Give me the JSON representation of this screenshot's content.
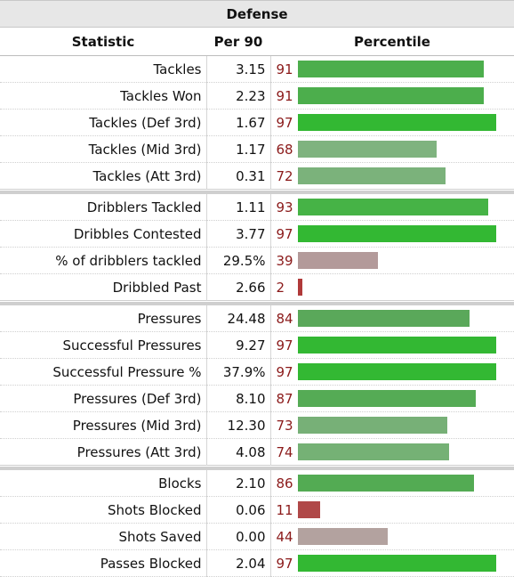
{
  "table": {
    "title": "Defense",
    "headers": [
      "Statistic",
      "Per 90",
      "Percentile"
    ],
    "groups": [
      [
        {
          "stat": "Tackles",
          "per90": "3.15",
          "pct": 91,
          "color": "#4cae4c"
        },
        {
          "stat": "Tackles Won",
          "per90": "2.23",
          "pct": 91,
          "color": "#4cae4c"
        },
        {
          "stat": "Tackles (Def 3rd)",
          "per90": "1.67",
          "pct": 97,
          "color": "#33b833"
        },
        {
          "stat": "Tackles (Mid 3rd)",
          "per90": "1.17",
          "pct": 68,
          "color": "#7fb37f"
        },
        {
          "stat": "Tackles (Att 3rd)",
          "per90": "0.31",
          "pct": 72,
          "color": "#7bb27b"
        }
      ],
      [
        {
          "stat": "Dribblers Tackled",
          "per90": "1.11",
          "pct": 93,
          "color": "#46b346"
        },
        {
          "stat": "Dribbles Contested",
          "per90": "3.77",
          "pct": 97,
          "color": "#33b833"
        },
        {
          "stat": "% of dribblers tackled",
          "per90": "29.5%",
          "pct": 39,
          "color": "#b39a9a"
        },
        {
          "stat": "Dribbled Past",
          "per90": "2.66",
          "pct": 2,
          "color": "#b03a3a"
        }
      ],
      [
        {
          "stat": "Pressures",
          "per90": "24.48",
          "pct": 84,
          "color": "#5aa85a"
        },
        {
          "stat": "Successful Pressures",
          "per90": "9.27",
          "pct": 97,
          "color": "#33b833"
        },
        {
          "stat": "Successful Pressure %",
          "per90": "37.9%",
          "pct": 97,
          "color": "#33b833"
        },
        {
          "stat": "Pressures (Def 3rd)",
          "per90": "8.10",
          "pct": 87,
          "color": "#55ab55"
        },
        {
          "stat": "Pressures (Mid 3rd)",
          "per90": "12.30",
          "pct": 73,
          "color": "#77b077"
        },
        {
          "stat": "Pressures (Att 3rd)",
          "per90": "4.08",
          "pct": 74,
          "color": "#75b175"
        }
      ],
      [
        {
          "stat": "Blocks",
          "per90": "2.10",
          "pct": 86,
          "color": "#53ab53"
        },
        {
          "stat": "Shots Blocked",
          "per90": "0.06",
          "pct": 11,
          "color": "#b04848"
        },
        {
          "stat": "Shots Saved",
          "per90": "0.00",
          "pct": 44,
          "color": "#b3a29f"
        },
        {
          "stat": "Passes Blocked",
          "per90": "2.04",
          "pct": 97,
          "color": "#33b833"
        }
      ]
    ]
  }
}
